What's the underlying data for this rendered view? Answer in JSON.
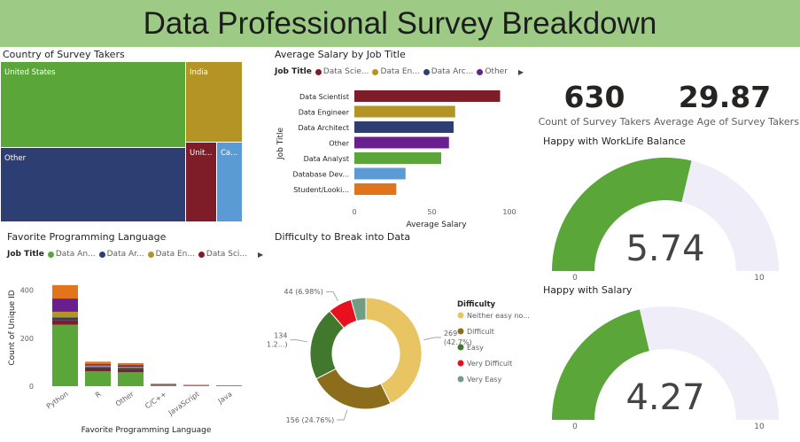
{
  "title": "Data Professional Survey Breakdown",
  "colors": {
    "green": "#5aa639",
    "navy": "#2d3e73",
    "gold": "#b39425",
    "maroon": "#7e1d27",
    "lightblue": "#5b9bd5",
    "purple": "#6a1f91",
    "orange": "#e2741c",
    "gauge_track": "#eeedf8"
  },
  "treemap": {
    "title": "Country of Survey Takers",
    "cells": [
      {
        "label": "United States",
        "color": "#5aa639"
      },
      {
        "label": "Other",
        "color": "#2d3e73"
      },
      {
        "label": "India",
        "color": "#b39425"
      },
      {
        "label": "Unit...",
        "color": "#7e1d27"
      },
      {
        "label": "Ca...",
        "color": "#5b9bd5"
      }
    ]
  },
  "salary": {
    "title": "Average Salary by Job Title",
    "legend_title": "Job Title",
    "legend": [
      {
        "label": "Data Scie...",
        "color": "#7e1d27"
      },
      {
        "label": "Data En...",
        "color": "#b39425"
      },
      {
        "label": "Data Arc...",
        "color": "#2d3e73"
      },
      {
        "label": "Other",
        "color": "#6a1f91"
      }
    ]
  },
  "kpis": [
    {
      "value": "630",
      "label": "Count of Survey Takers"
    },
    {
      "value": "29.87",
      "label": "Average Age of Survey Takers"
    }
  ],
  "lang": {
    "title": "Favorite Programming Language",
    "legend_title": "Job Title",
    "legend": [
      {
        "label": "Data An...",
        "color": "#5aa639"
      },
      {
        "label": "Data Ar...",
        "color": "#2d3e73"
      },
      {
        "label": "Data En...",
        "color": "#b39425"
      },
      {
        "label": "Data Sci...",
        "color": "#7e1d27"
      }
    ]
  },
  "donut": {
    "title": "Difficulty to Break into Data",
    "legend_title": "Difficulty"
  },
  "chart_data": [
    {
      "type": "treemap",
      "title": "Country of Survey Takers",
      "categories": [
        "United States",
        "Other",
        "India",
        "United Kingdom",
        "Canada"
      ],
      "display_labels": [
        "United States",
        "Other",
        "India",
        "Unit...",
        "Ca..."
      ]
    },
    {
      "type": "bar",
      "orientation": "horizontal",
      "title": "Average Salary by Job Title",
      "categories": [
        "Data Scientist",
        "Data Engineer",
        "Data Architect",
        "Other",
        "Data Analyst",
        "Database Dev...",
        "Student/Looki..."
      ],
      "values": [
        94,
        65,
        64,
        61,
        56,
        33,
        27
      ],
      "colors": [
        "#7e1d27",
        "#b39425",
        "#2d3e73",
        "#6a1f91",
        "#5aa639",
        "#5b9bd5",
        "#e2741c"
      ],
      "xlabel": "Average Salary",
      "ylabel": "Job Title",
      "xlim": [
        0,
        100
      ],
      "xticks": [
        0,
        50,
        100
      ],
      "legend": "top"
    },
    {
      "type": "bar",
      "stacked": true,
      "title": "Favorite Programming Language",
      "categories": [
        "Python",
        "R",
        "Other",
        "C/C++",
        "JavaScript",
        "Java"
      ],
      "series": [
        {
          "name": "Data An...",
          "color": "#5aa639",
          "values": [
            256,
            62,
            58,
            5,
            1,
            1
          ]
        },
        {
          "name": "Data Sci...",
          "color": "#7e1d27",
          "values": [
            20,
            10,
            10,
            2,
            2,
            1
          ]
        },
        {
          "name": "Data Ar...",
          "color": "#2d3e73",
          "values": [
            10,
            8,
            8,
            1,
            0,
            1
          ]
        },
        {
          "name": "Data En...",
          "color": "#b39425",
          "values": [
            24,
            6,
            5,
            1,
            1,
            0
          ]
        },
        {
          "name": "",
          "color": "#6a1f91",
          "values": [
            55,
            6,
            7,
            1,
            1,
            0
          ]
        },
        {
          "name": "",
          "color": "#e2741c",
          "values": [
            56,
            10,
            8,
            1,
            1,
            1
          ]
        }
      ],
      "xlabel": "Favorite Programming Language",
      "ylabel": "Count of Unique ID",
      "ylim": [
        0,
        450
      ],
      "yticks": [
        0,
        200,
        400
      ],
      "legend": "top"
    },
    {
      "type": "pie",
      "donut": true,
      "title": "Difficulty to Break into Data",
      "categories": [
        "Neither easy no...",
        "Difficult",
        "Easy",
        "Very Difficult",
        "Very Easy"
      ],
      "values": [
        269,
        156,
        134,
        44,
        27
      ],
      "colors": [
        "#e8c463",
        "#8c6d1c",
        "#41782d",
        "#e8101e",
        "#709e85"
      ],
      "data_labels": [
        "269\n(42.7%)",
        "156 (24.76%)",
        "134\n(21.2...)",
        "44 (6.98%)",
        ""
      ],
      "legend": "right"
    },
    {
      "type": "gauge",
      "title": "Happy with WorkLife Balance",
      "value": 5.74,
      "min": 0,
      "max": 10,
      "value_label": "5.74",
      "min_label": "0",
      "max_label": "10"
    },
    {
      "type": "gauge",
      "title": "Happy with Salary",
      "value": 4.27,
      "min": 0,
      "max": 10,
      "value_label": "4.27",
      "min_label": "0",
      "max_label": "10"
    }
  ]
}
